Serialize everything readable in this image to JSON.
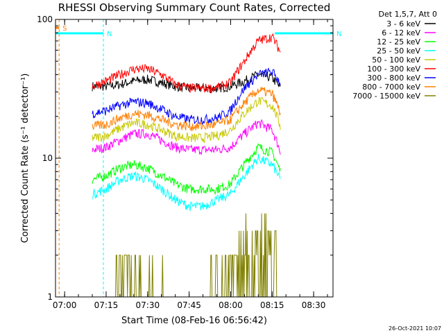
{
  "title": "RHESSI Observing Summary Count Rates, Corrected",
  "footer": "26-Oct-2021 10:07",
  "flag_labels": {
    "saa": "S",
    "night": "N"
  },
  "colors": {
    "axis": "#000000",
    "saa_flag": "#ff7f00",
    "night_flag": "#00ffff"
  },
  "chart_data": {
    "type": "line",
    "title": "RHESSI Observing Summary Count Rates, Corrected",
    "xlabel": "Start Time (08-Feb-16 06:56:42)",
    "ylabel": "Corrected Count Rate (s⁻¹ detector⁻¹)",
    "yscale": "log",
    "ylim": [
      1,
      100
    ],
    "xlim": [
      "06:56:42",
      "08:37:00"
    ],
    "x_ticks": [
      "07:00",
      "07:15",
      "07:30",
      "07:45",
      "08:00",
      "08:15",
      "08:30"
    ],
    "y_ticks": [
      "1",
      "10",
      "100"
    ],
    "grid": false,
    "legend_title": "Det 1,5,7, Att 0",
    "legend_position": "right",
    "x": [
      "07:10",
      "07:15",
      "07:20",
      "07:25",
      "07:30",
      "07:35",
      "07:40",
      "07:45",
      "07:50",
      "07:55",
      "08:00",
      "08:05",
      "08:10",
      "08:15",
      "08:18"
    ],
    "series": [
      {
        "name": "3 - 6 keV",
        "color": "#000000",
        "values": [
          33,
          33,
          34,
          36,
          37,
          35,
          33,
          32,
          32,
          32,
          33,
          36,
          40,
          38,
          32
        ]
      },
      {
        "name": "6 - 12 keV",
        "color": "#ff00ff",
        "values": [
          11.5,
          12,
          13.5,
          15,
          15,
          13.5,
          12,
          11.5,
          11.5,
          11.5,
          12,
          15,
          18,
          16,
          11
        ]
      },
      {
        "name": "12 - 25 keV",
        "color": "#00ff00",
        "values": [
          7,
          7.5,
          8.5,
          9,
          8.5,
          7.5,
          6.5,
          6,
          6,
          6,
          6.5,
          9,
          12,
          11,
          8
        ]
      },
      {
        "name": "25 - 50 keV",
        "color": "#00ffff",
        "values": [
          5.5,
          6,
          7,
          7.5,
          7,
          6,
          5,
          4.5,
          4.5,
          5,
          5.5,
          7.5,
          10,
          9,
          7
        ]
      },
      {
        "name": "50 - 100 keV",
        "color": "#c8c800",
        "values": [
          14,
          14.5,
          16.5,
          18,
          17.5,
          16,
          14.5,
          14,
          14,
          14.5,
          16,
          21,
          26,
          24,
          17
        ]
      },
      {
        "name": "100 - 300 keV",
        "color": "#ff0000",
        "values": [
          33,
          36,
          40,
          44,
          44,
          40,
          34,
          32,
          32,
          32,
          35,
          50,
          70,
          75,
          58
        ]
      },
      {
        "name": "300 - 800 keV",
        "color": "#0000ff",
        "values": [
          21,
          22,
          24,
          25.5,
          25,
          22.5,
          20,
          19,
          19,
          19.5,
          22,
          32,
          40,
          42,
          35
        ]
      },
      {
        "name": "800 - 7000 keV",
        "color": "#ff7f00",
        "values": [
          17,
          17.5,
          19.5,
          21,
          20.5,
          19,
          17.5,
          17,
          17,
          17.5,
          19,
          25,
          31,
          29,
          21
        ]
      },
      {
        "name": "7000 - 15000 keV",
        "color": "#808000",
        "values": [
          1,
          1,
          1.8,
          1.8,
          1.5,
          1.3,
          1,
          1,
          1,
          1.5,
          1.8,
          2.8,
          3.2,
          3,
          1
        ]
      }
    ],
    "flags": [
      {
        "label": "S",
        "type": "SAA",
        "color": "#ff7f00",
        "start": "06:56:42",
        "end": "06:58:00"
      },
      {
        "label": "N",
        "type": "Night",
        "color": "#00ffff",
        "start": "06:56:42",
        "end": "07:14:00"
      },
      {
        "label": "N",
        "type": "Night",
        "color": "#00ffff",
        "start": "08:16:00",
        "end": "08:37:00"
      }
    ]
  }
}
